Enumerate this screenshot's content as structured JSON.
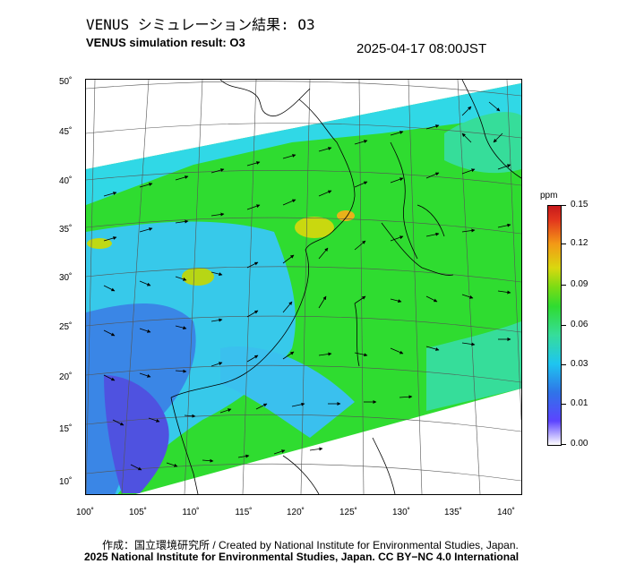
{
  "header": {
    "title_jp": "VENUS シミュレーション結果: O3",
    "title_en": "VENUS simulation result: O3",
    "timestamp": "2025-04-17 08:00JST"
  },
  "map": {
    "lat_ticks": [
      "50˚",
      "45˚",
      "40˚",
      "35˚",
      "30˚",
      "25˚",
      "20˚",
      "15˚",
      "10˚"
    ],
    "lon_ticks": [
      "100˚",
      "105˚",
      "110˚",
      "115˚",
      "120˚",
      "125˚",
      "130˚",
      "135˚",
      "140˚"
    ],
    "variable": "O3"
  },
  "colorbar": {
    "unit": "ppm",
    "labels": [
      "0.15",
      "0.12",
      "0.09",
      "0.06",
      "0.03",
      "0.01",
      "0.00"
    ],
    "colors": {
      "min": "#ffffff",
      "low": "#2f74e8",
      "mid_low": "#1ec5f0",
      "mid": "#2fdc30",
      "mid_high": "#d9d80f",
      "high": "#f39a16",
      "max": "#c7191c"
    }
  },
  "footer": {
    "credit_line_1": "作成：国立環境研究所 / Created by National Institute for Environmental Studies, Japan.",
    "credit_line_2": "2025 National Institute for Environmental Studies, Japan. CC BY−NC 4.0 International"
  }
}
